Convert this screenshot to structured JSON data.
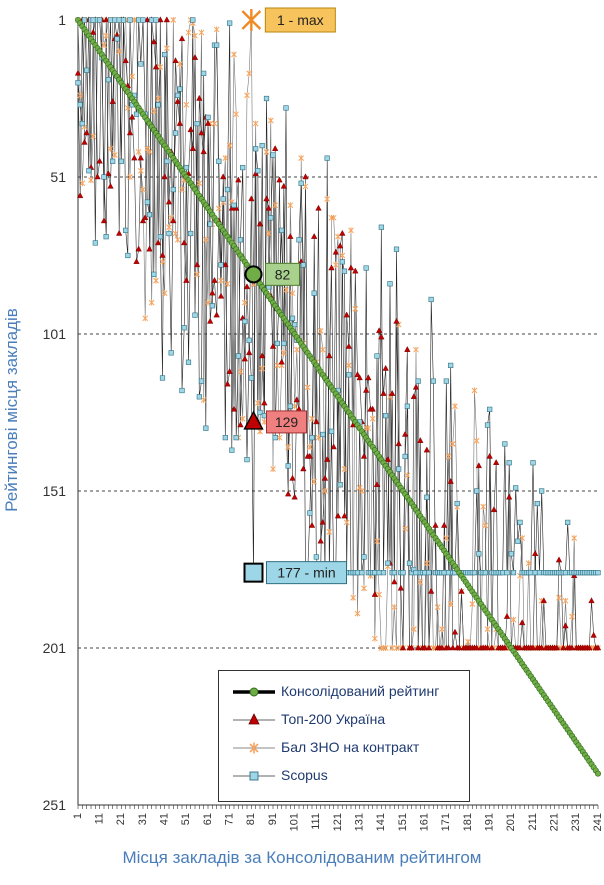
{
  "chart_data": {
    "type": "line",
    "ylabel": "Рейтингові місця закладів",
    "xlabel": "Місця закладів за Консолідованим рейтингом",
    "xlim": [
      1,
      241
    ],
    "ylim": [
      1,
      251
    ],
    "y_reversed": true,
    "grid": "horizontal dashed",
    "x_ticks": [
      1,
      11,
      21,
      31,
      41,
      51,
      61,
      71,
      81,
      91,
      101,
      111,
      121,
      131,
      141,
      151,
      161,
      171,
      181,
      191,
      201,
      211,
      221,
      231,
      241
    ],
    "y_ticks": [
      1,
      51,
      101,
      151,
      201,
      251
    ],
    "series": [
      {
        "name": "Консолідований рейтинг",
        "color": "#70ad47",
        "marker": "circle",
        "x_range": [
          1,
          241
        ],
        "values_equal_x": true
      },
      {
        "name": "Топ-200 Україна",
        "color": "#c00000",
        "marker": "triangle",
        "missing_value_rank": 201
      },
      {
        "name": "Бал ЗНО на контракт",
        "color": "#f4a460",
        "marker": "star",
        "missing_value_rank": 201
      },
      {
        "name": "Scopus",
        "color": "#7fc4d8",
        "marker": "square",
        "floor_rank": 177
      }
    ],
    "annotations": [
      {
        "text": "1 - max",
        "x": 81,
        "y": 1,
        "series": "Бал ЗНО на контракт",
        "color": "#f7c35c"
      },
      {
        "text": "82",
        "x": 82,
        "y": 82,
        "series": "Консолідований рейтинг",
        "color": "#a9d18e"
      },
      {
        "text": "129",
        "x": 82,
        "y": 129,
        "series": "Топ-200 Україна",
        "color": "#f08080"
      },
      {
        "text": "177 - min",
        "x": 82,
        "y": 177,
        "series": "Scopus",
        "color": "#9dd6e6"
      }
    ],
    "legend": "bottom-center"
  }
}
